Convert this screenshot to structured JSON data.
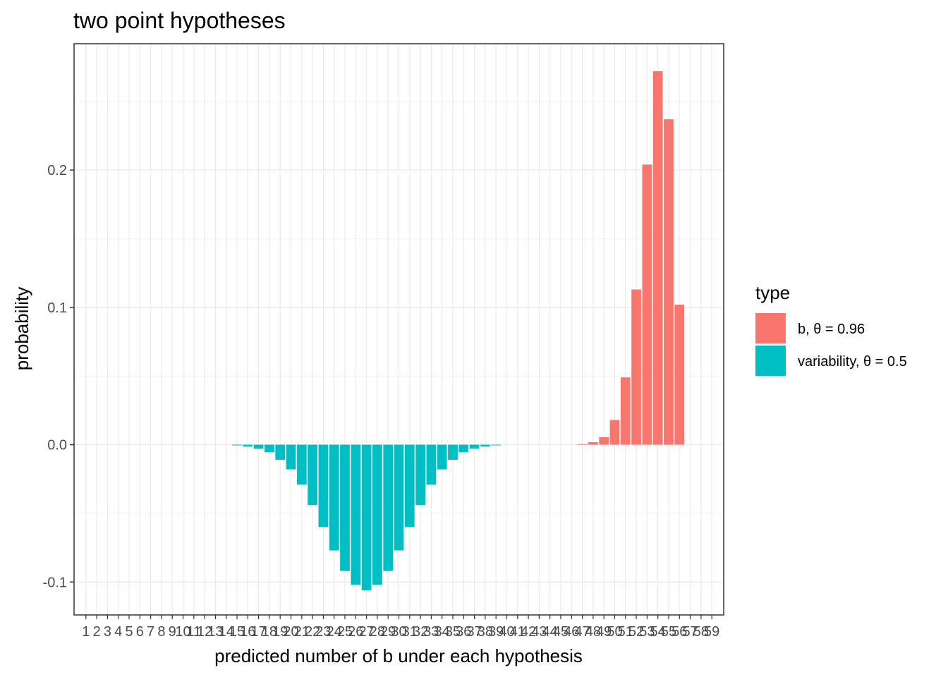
{
  "chart_data": {
    "type": "bar",
    "title": "two point hypotheses",
    "xlabel": "predicted number of b under each hypothesis",
    "ylabel": "probability",
    "x_categories": [
      "1",
      "2",
      "3",
      "4",
      "5",
      "6",
      "7",
      "8",
      "9",
      "10",
      "11",
      "12",
      "13",
      "14",
      "15",
      "16",
      "17",
      "18",
      "19",
      "20",
      "21",
      "22",
      "23",
      "24",
      "25",
      "26",
      "27",
      "28",
      "29",
      "30",
      "31",
      "32",
      "33",
      "34",
      "35",
      "36",
      "37",
      "38",
      "39",
      "40",
      "41",
      "42",
      "43",
      "44",
      "45",
      "46",
      "47",
      "48",
      "49",
      "50",
      "51",
      "52",
      "53",
      "54",
      "55",
      "56",
      "57",
      "58",
      "59"
    ],
    "ylim": [
      -0.124,
      0.292
    ],
    "y_ticks": [
      {
        "value": -0.1,
        "label": "-0.1"
      },
      {
        "value": 0.0,
        "label": "0.0"
      },
      {
        "value": 0.1,
        "label": "0.1"
      },
      {
        "value": 0.2,
        "label": "0.2"
      }
    ],
    "grid": true,
    "legend": {
      "title": "type",
      "position": "right"
    },
    "series": [
      {
        "name": "b, θ = 0.96",
        "color": "#F8766D",
        "points": [
          {
            "x": 47,
            "y": 0.0005
          },
          {
            "x": 48,
            "y": 0.0018
          },
          {
            "x": 49,
            "y": 0.0055
          },
          {
            "x": 50,
            "y": 0.018
          },
          {
            "x": 51,
            "y": 0.049
          },
          {
            "x": 52,
            "y": 0.113
          },
          {
            "x": 53,
            "y": 0.204
          },
          {
            "x": 54,
            "y": 0.272
          },
          {
            "x": 55,
            "y": 0.237
          },
          {
            "x": 56,
            "y": 0.102
          }
        ]
      },
      {
        "name": "variability, θ = 0.5",
        "color": "#00BFC4",
        "points": [
          {
            "x": 15,
            "y": -0.0005
          },
          {
            "x": 16,
            "y": -0.0013
          },
          {
            "x": 17,
            "y": -0.003
          },
          {
            "x": 18,
            "y": -0.0055
          },
          {
            "x": 19,
            "y": -0.011
          },
          {
            "x": 20,
            "y": -0.018
          },
          {
            "x": 21,
            "y": -0.029
          },
          {
            "x": 22,
            "y": -0.044
          },
          {
            "x": 23,
            "y": -0.06
          },
          {
            "x": 24,
            "y": -0.077
          },
          {
            "x": 25,
            "y": -0.092
          },
          {
            "x": 26,
            "y": -0.102
          },
          {
            "x": 27,
            "y": -0.106
          },
          {
            "x": 28,
            "y": -0.102
          },
          {
            "x": 29,
            "y": -0.092
          },
          {
            "x": 30,
            "y": -0.077
          },
          {
            "x": 31,
            "y": -0.06
          },
          {
            "x": 32,
            "y": -0.044
          },
          {
            "x": 33,
            "y": -0.029
          },
          {
            "x": 34,
            "y": -0.018
          },
          {
            "x": 35,
            "y": -0.011
          },
          {
            "x": 36,
            "y": -0.0055
          },
          {
            "x": 37,
            "y": -0.003
          },
          {
            "x": 38,
            "y": -0.0013
          },
          {
            "x": 39,
            "y": -0.0005
          }
        ]
      }
    ]
  }
}
